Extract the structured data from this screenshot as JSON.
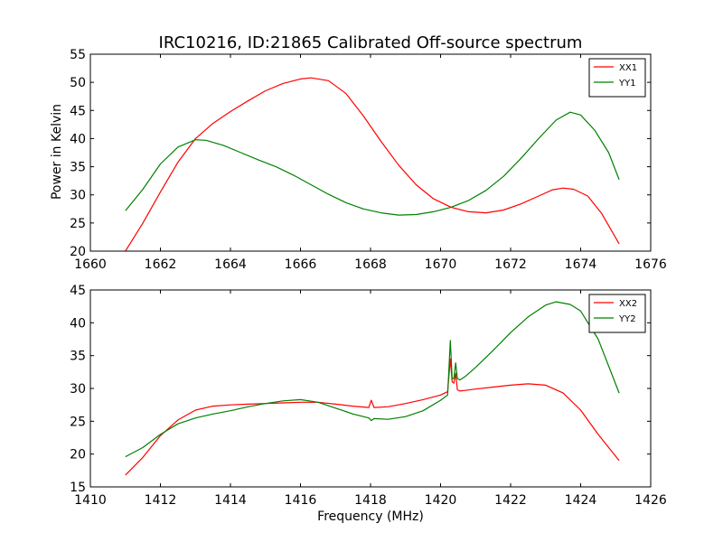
{
  "chart_data": [
    {
      "type": "line",
      "title": "IRC10216, ID:21865 Calibrated Off-source spectrum",
      "xlabel": "",
      "ylabel": "Power in Kelvin",
      "xlim": [
        1660,
        1676
      ],
      "ylim": [
        20,
        55
      ],
      "xticks": [
        1660,
        1662,
        1664,
        1666,
        1668,
        1670,
        1672,
        1674,
        1676
      ],
      "yticks": [
        20,
        25,
        30,
        35,
        40,
        45,
        50,
        55
      ],
      "legend": "top-right",
      "series": [
        {
          "name": "XX1",
          "color": "#ff0000",
          "x": [
            1661.0,
            1661.5,
            1662.0,
            1662.5,
            1663.0,
            1663.5,
            1664.0,
            1664.5,
            1665.0,
            1665.5,
            1666.0,
            1666.3,
            1666.8,
            1667.3,
            1667.8,
            1668.3,
            1668.8,
            1669.3,
            1669.8,
            1670.3,
            1670.8,
            1671.3,
            1671.8,
            1672.3,
            1672.8,
            1673.2,
            1673.5,
            1673.8,
            1674.2,
            1674.6,
            1675.1
          ],
          "y": [
            20.0,
            25.0,
            30.5,
            35.8,
            40.0,
            42.7,
            44.8,
            46.7,
            48.5,
            49.8,
            50.6,
            50.8,
            50.3,
            48.0,
            44.0,
            39.5,
            35.3,
            31.8,
            29.3,
            27.8,
            27.0,
            26.8,
            27.3,
            28.4,
            29.8,
            30.9,
            31.2,
            31.0,
            29.8,
            26.7,
            21.3
          ]
        },
        {
          "name": "YY1",
          "color": "#008000",
          "x": [
            1661.0,
            1661.5,
            1662.0,
            1662.5,
            1663.0,
            1663.3,
            1663.8,
            1664.3,
            1664.8,
            1665.3,
            1665.8,
            1666.3,
            1666.8,
            1667.3,
            1667.8,
            1668.3,
            1668.8,
            1669.3,
            1669.8,
            1670.3,
            1670.8,
            1671.3,
            1671.8,
            1672.3,
            1672.8,
            1673.3,
            1673.7,
            1674.0,
            1674.4,
            1674.8,
            1675.1
          ],
          "y": [
            27.2,
            31.0,
            35.5,
            38.5,
            39.8,
            39.7,
            38.8,
            37.5,
            36.2,
            35.0,
            33.5,
            31.8,
            30.1,
            28.6,
            27.5,
            26.8,
            26.4,
            26.5,
            27.0,
            27.8,
            29.0,
            30.8,
            33.3,
            36.5,
            40.0,
            43.3,
            44.7,
            44.2,
            41.5,
            37.5,
            32.7
          ]
        }
      ]
    },
    {
      "type": "line",
      "title": "",
      "xlabel": "Frequency (MHz)",
      "ylabel": "",
      "xlim": [
        1410,
        1426
      ],
      "ylim": [
        15,
        45
      ],
      "xticks": [
        1410,
        1412,
        1414,
        1416,
        1418,
        1420,
        1422,
        1424,
        1426
      ],
      "yticks": [
        15,
        20,
        25,
        30,
        35,
        40,
        45
      ],
      "legend": "top-right",
      "series": [
        {
          "name": "XX2",
          "color": "#ff0000",
          "x": [
            1411.0,
            1411.5,
            1412.0,
            1412.5,
            1413.0,
            1413.5,
            1414.0,
            1414.5,
            1415.0,
            1415.5,
            1416.0,
            1416.5,
            1417.0,
            1417.5,
            1417.95,
            1418.02,
            1418.1,
            1418.5,
            1419.0,
            1419.5,
            1420.0,
            1420.2,
            1420.28,
            1420.33,
            1420.38,
            1420.43,
            1420.48,
            1420.55,
            1420.7,
            1421.0,
            1421.5,
            1422.0,
            1422.5,
            1423.0,
            1423.5,
            1424.0,
            1424.5,
            1425.1
          ],
          "y": [
            16.8,
            19.5,
            22.8,
            25.2,
            26.7,
            27.3,
            27.5,
            27.6,
            27.7,
            27.8,
            27.9,
            27.9,
            27.6,
            27.3,
            27.1,
            28.2,
            27.1,
            27.2,
            27.7,
            28.3,
            29.0,
            29.5,
            34.5,
            31.0,
            30.8,
            32.3,
            29.8,
            29.6,
            29.7,
            29.9,
            30.2,
            30.5,
            30.7,
            30.5,
            29.3,
            26.7,
            23.0,
            19.0
          ]
        },
        {
          "name": "YY2",
          "color": "#008000",
          "x": [
            1411.0,
            1411.5,
            1412.0,
            1412.5,
            1413.0,
            1413.5,
            1414.0,
            1414.5,
            1415.0,
            1415.5,
            1416.0,
            1416.5,
            1417.0,
            1417.5,
            1417.95,
            1418.02,
            1418.1,
            1418.5,
            1419.0,
            1419.5,
            1420.0,
            1420.2,
            1420.28,
            1420.33,
            1420.38,
            1420.43,
            1420.48,
            1420.55,
            1420.7,
            1421.0,
            1421.5,
            1422.0,
            1422.5,
            1423.0,
            1423.3,
            1423.7,
            1424.0,
            1424.5,
            1425.1
          ],
          "y": [
            19.6,
            21.0,
            23.0,
            24.6,
            25.5,
            26.1,
            26.6,
            27.2,
            27.7,
            28.1,
            28.3,
            27.9,
            27.0,
            26.1,
            25.5,
            25.1,
            25.4,
            25.3,
            25.7,
            26.6,
            28.2,
            29.0,
            37.3,
            31.5,
            31.5,
            33.9,
            31.5,
            31.3,
            31.8,
            33.2,
            35.8,
            38.5,
            40.9,
            42.7,
            43.2,
            42.8,
            41.8,
            37.5,
            29.3
          ]
        }
      ]
    }
  ]
}
